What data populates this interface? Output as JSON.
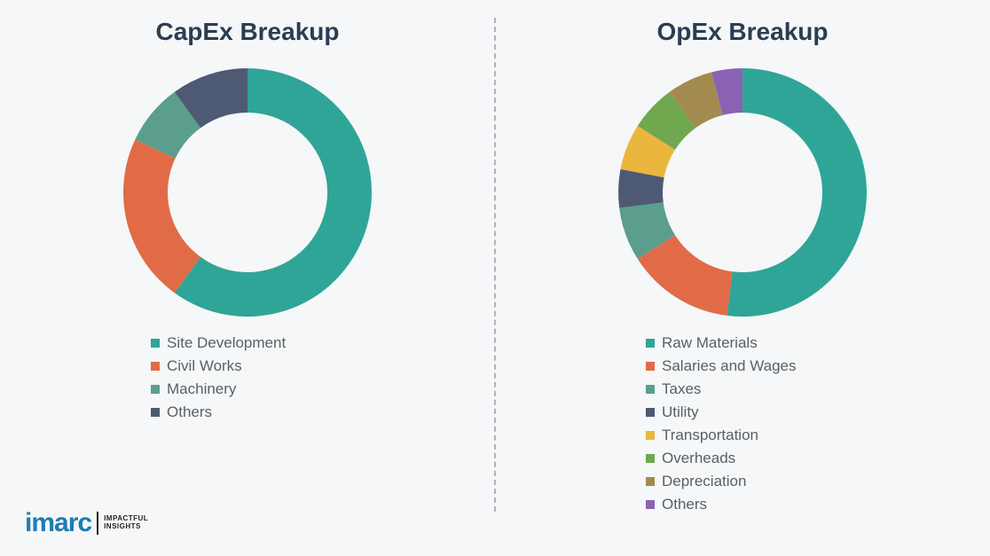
{
  "background_color": "#f5f7f8",
  "divider_color": "#b0b4b8",
  "title_color": "#2a3d52",
  "title_fontsize": 28,
  "legend_fontsize": 17,
  "legend_text_color": "#5a5f63",
  "donut_inner_radius": 90,
  "donut_outer_radius": 140,
  "capex": {
    "title": "CapEx Breakup",
    "type": "donut",
    "start_angle_deg": 0,
    "slices": [
      {
        "label": "Site Development",
        "value": 60,
        "color": "#2fa597"
      },
      {
        "label": "Civil Works",
        "value": 22,
        "color": "#e16b47"
      },
      {
        "label": "Machinery",
        "value": 8,
        "color": "#5a9e8b"
      },
      {
        "label": "Others",
        "value": 10,
        "color": "#4e5a74"
      }
    ]
  },
  "opex": {
    "title": "OpEx Breakup",
    "type": "donut",
    "start_angle_deg": 0,
    "slices": [
      {
        "label": "Raw Materials",
        "value": 52,
        "color": "#2fa597"
      },
      {
        "label": "Salaries and Wages",
        "value": 14,
        "color": "#e16b47"
      },
      {
        "label": "Taxes",
        "value": 7,
        "color": "#5a9e8b"
      },
      {
        "label": "Utility",
        "value": 5,
        "color": "#4e5a74"
      },
      {
        "label": "Transportation",
        "value": 6,
        "color": "#eab63d"
      },
      {
        "label": "Overheads",
        "value": 6,
        "color": "#6fa84f"
      },
      {
        "label": "Depreciation",
        "value": 6,
        "color": "#a38b4f"
      },
      {
        "label": "Others",
        "value": 4,
        "color": "#8a62b3"
      }
    ]
  },
  "logo": {
    "main": "imarc",
    "tag_line1": "IMPACTFUL",
    "tag_line2": "INSIGHTS",
    "main_color": "#1d7db0"
  }
}
